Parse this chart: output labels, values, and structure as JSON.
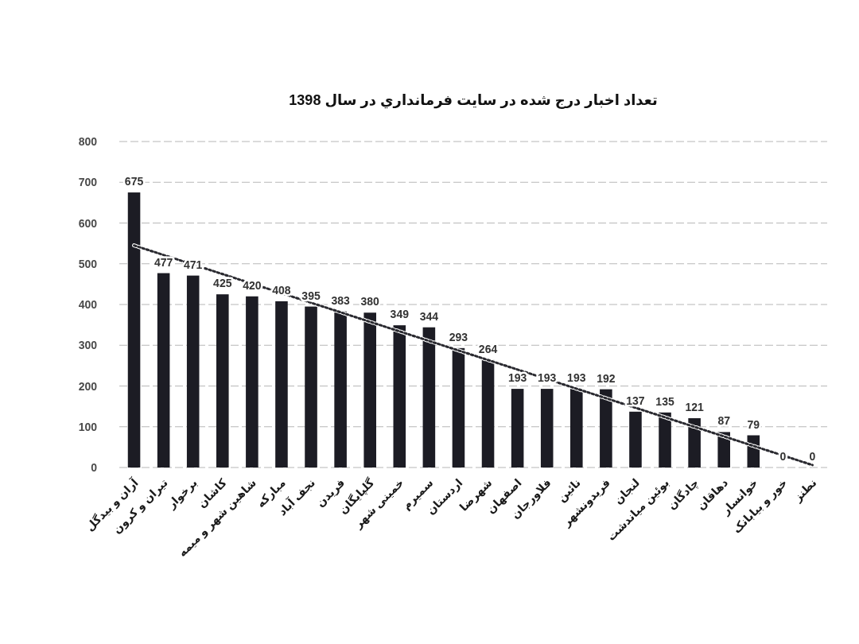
{
  "chart_data": {
    "type": "bar",
    "title": "تعداد اخبار درج شده در سایت فرمانداري در سال 1398",
    "categories": [
      "آران و بیدگل",
      "تیران و کرون",
      "برخوار",
      "کاشان",
      "شاهین شهر و میمه",
      "مبارکه",
      "نجف آباد",
      "فریدن",
      "گلپایگان",
      "خمینی شهر",
      "سمیرم",
      "اردستان",
      "شهرضا",
      "اصفهان",
      "فلاورجان",
      "نائین",
      "فریدونشهر",
      "لنجان",
      "بوئین میاندشت",
      "چادگان",
      "دهاقان",
      "خوانسار",
      "خور و بیابانک",
      "نطنز"
    ],
    "series": [
      {
        "color": "#1c1c24",
        "values": [
          675,
          477,
          471,
          425,
          420,
          408,
          395,
          383,
          380,
          349,
          344,
          293,
          264,
          193,
          193,
          193,
          192,
          137,
          135,
          121,
          87,
          79,
          0,
          0
        ],
        "value_labels": [
          "675",
          "477",
          "471",
          "425",
          "420",
          "408",
          "395",
          "383",
          "380",
          "349",
          "344",
          "293",
          "264",
          "193",
          "193",
          "193",
          "192",
          "137",
          "135",
          "121",
          "87",
          "79",
          "0",
          "0"
        ]
      },
      {
        "type": "line",
        "color": "#2a2a30",
        "line_style": "dotted",
        "x": [
          "آران و بیدگل",
          "نطنز"
        ],
        "values": [
          545,
          6
        ]
      }
    ],
    "ylim": [
      0,
      800
    ],
    "yticks": [
      0,
      100,
      200,
      300,
      400,
      500,
      600,
      700,
      800
    ],
    "grid": "y"
  }
}
